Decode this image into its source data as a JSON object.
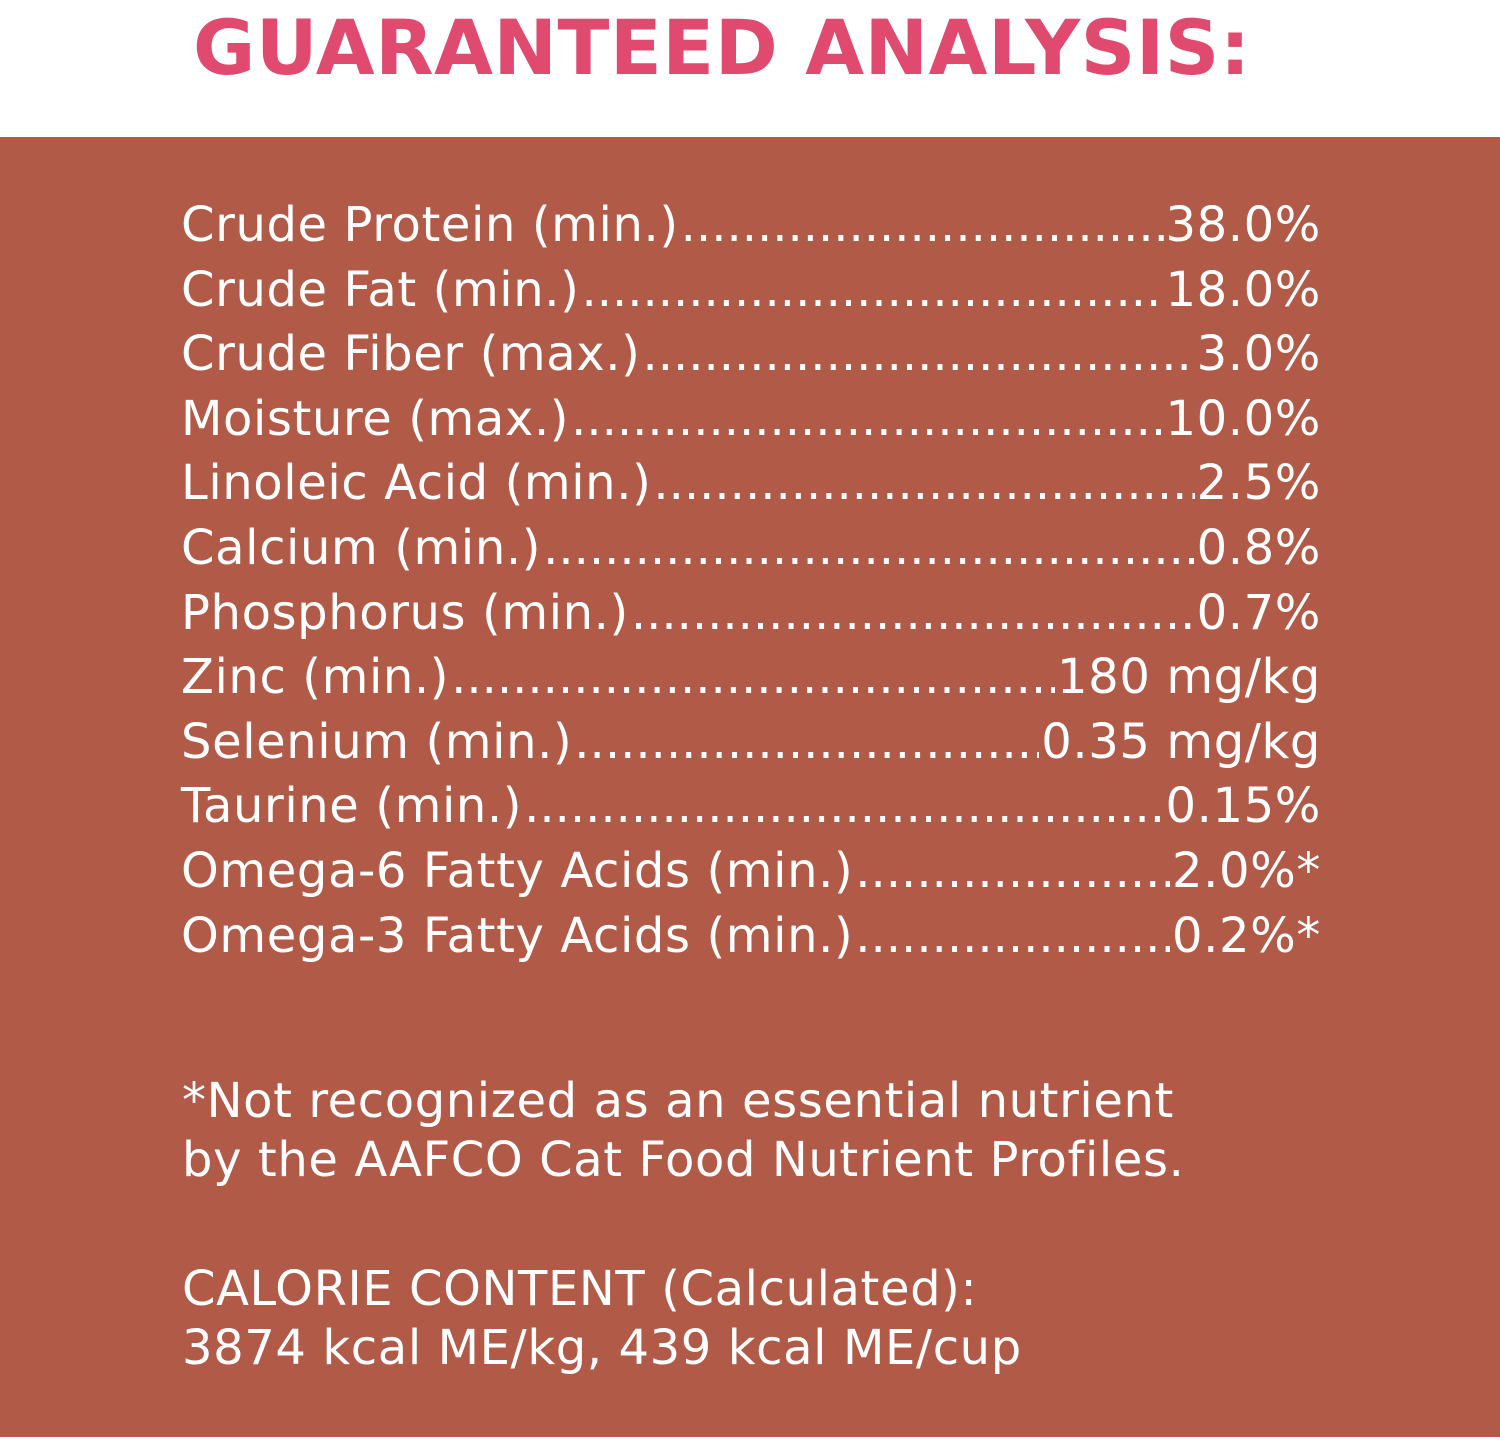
{
  "colors": {
    "title": "#e04a6e",
    "panel_background": "#b05a47",
    "text": "#ffffff",
    "header_background": "#ffffff"
  },
  "title": "GUARANTEED ANALYSIS:",
  "analysis": [
    {
      "label": "Crude Protein (min.)",
      "value": "38.0%"
    },
    {
      "label": "Crude Fat (min.)",
      "value": "18.0%"
    },
    {
      "label": "Crude Fiber (max.)",
      "value": "3.0%"
    },
    {
      "label": "Moisture (max.)",
      "value": "10.0%"
    },
    {
      "label": "Linoleic Acid (min.)",
      "value": "2.5%"
    },
    {
      "label": "Calcium (min.)",
      "value": "0.8%"
    },
    {
      "label": "Phosphorus (min.)",
      "value": "0.7%"
    },
    {
      "label": "Zinc (min.)",
      "value": "180 mg/kg"
    },
    {
      "label": "Selenium (min.)",
      "value": "0.35 mg/kg"
    },
    {
      "label": "Taurine (min.)",
      "value": "0.15%"
    },
    {
      "label": "Omega-6 Fatty Acids (min.)",
      "value": "2.0%*"
    },
    {
      "label": "Omega-3 Fatty Acids (min.)",
      "value": "0.2%*"
    }
  ],
  "footnote": {
    "line1": "*Not recognized as an essential nutrient",
    "line2": "by the AAFCO Cat Food Nutrient Profiles."
  },
  "calorie": {
    "heading": "CALORIE CONTENT (Calculated):",
    "values": "3874 kcal ME/kg, 439 kcal ME/cup"
  }
}
